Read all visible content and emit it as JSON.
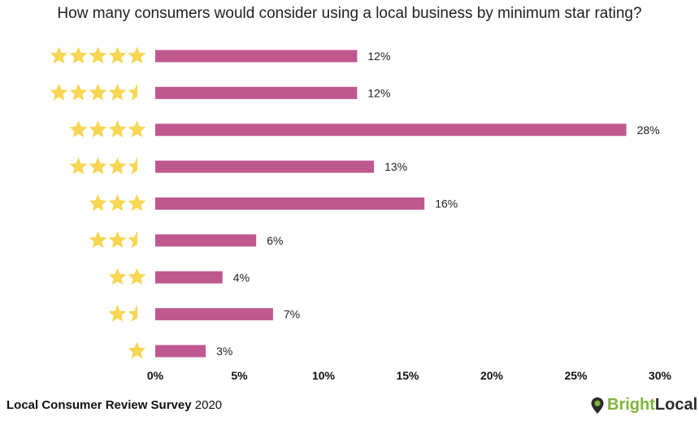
{
  "title": "How many consumers would consider using a local business by minimum star rating?",
  "footer": {
    "survey_name": "Local Consumer Review Survey",
    "year": "2020"
  },
  "brand": {
    "icon": "map-pin-icon",
    "name_part1": "Bright",
    "name_part2": "Local",
    "color_part1": "#7fb33a",
    "color_part2": "#2b2b2b"
  },
  "colors": {
    "bar": "#c05890",
    "star": "#f7d653"
  },
  "chart_data": {
    "type": "bar",
    "orientation": "horizontal",
    "title": "How many consumers would consider using a local business by minimum star rating?",
    "categories": [
      5,
      4.5,
      4,
      3.5,
      3,
      2.5,
      2,
      1.5,
      1
    ],
    "category_display": "star icons",
    "values": [
      12,
      12,
      28,
      13,
      16,
      6,
      4,
      7,
      3
    ],
    "value_labels": [
      "12%",
      "12%",
      "28%",
      "13%",
      "16%",
      "6%",
      "4%",
      "7%",
      "3%"
    ],
    "xlim": [
      0,
      30
    ],
    "xticks": [
      "0%",
      "5%",
      "10%",
      "15%",
      "20%",
      "25%",
      "30%"
    ],
    "grid": false,
    "legend": "none"
  }
}
